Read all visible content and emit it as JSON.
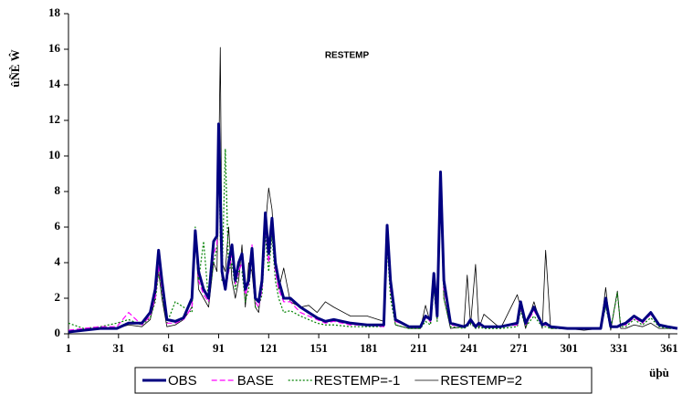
{
  "chart_data": {
    "type": "line",
    "title": "RESTEMP",
    "y_label": "ûÑÈ Ŵ",
    "x_label": "üþù",
    "x": [
      1,
      10,
      20,
      30,
      37,
      45,
      50,
      53,
      55,
      57,
      60,
      65,
      70,
      75,
      77,
      79,
      82,
      85,
      88,
      90,
      91,
      92,
      93,
      95,
      97,
      99,
      101,
      103,
      105,
      107,
      109,
      111,
      113,
      115,
      117,
      119,
      121,
      123,
      125,
      127,
      130,
      134,
      140,
      145,
      150,
      155,
      160,
      170,
      180,
      190,
      192,
      194,
      197,
      205,
      212,
      215,
      218,
      220,
      222,
      224,
      226,
      230,
      238,
      240,
      242,
      245,
      247,
      250,
      260,
      270,
      272,
      275,
      280,
      285,
      287,
      290,
      300,
      310,
      320,
      323,
      326,
      330,
      332,
      335,
      340,
      345,
      350,
      355,
      360,
      366
    ],
    "series": [
      {
        "name": "OBS",
        "color": "#000080",
        "width": 3,
        "dash": "none",
        "values": [
          0.1,
          0.2,
          0.3,
          0.3,
          0.6,
          0.6,
          1.2,
          2.5,
          4.7,
          3.0,
          0.8,
          0.7,
          0.9,
          2.0,
          5.8,
          3.5,
          2.5,
          2.0,
          5.2,
          5.5,
          11.8,
          8.0,
          3.5,
          2.5,
          4.0,
          5.0,
          3.0,
          4.0,
          4.5,
          2.5,
          3.0,
          4.8,
          2.0,
          1.8,
          3.0,
          6.8,
          4.5,
          6.5,
          4.0,
          3.0,
          2.0,
          2.0,
          1.5,
          1.2,
          0.9,
          0.7,
          0.8,
          0.6,
          0.5,
          0.5,
          6.1,
          3.0,
          0.8,
          0.4,
          0.4,
          1.0,
          0.8,
          3.4,
          1.0,
          9.1,
          3.0,
          0.6,
          0.4,
          0.5,
          0.8,
          0.4,
          0.6,
          0.4,
          0.4,
          0.6,
          1.8,
          0.6,
          1.5,
          0.5,
          0.6,
          0.4,
          0.3,
          0.3,
          0.3,
          2.0,
          0.4,
          0.4,
          0.5,
          0.6,
          1.0,
          0.7,
          1.2,
          0.5,
          0.4,
          0.3
        ]
      },
      {
        "name": "BASE",
        "color": "#ff00ff",
        "width": 1.2,
        "dash": "6 3",
        "values": [
          0.2,
          0.3,
          0.4,
          0.4,
          1.2,
          0.5,
          1.0,
          2.0,
          3.8,
          2.5,
          0.6,
          0.6,
          0.8,
          1.5,
          5.5,
          3.0,
          2.2,
          1.8,
          4.5,
          5.0,
          11.5,
          6.5,
          3.2,
          2.4,
          3.5,
          4.5,
          2.8,
          3.5,
          4.0,
          2.2,
          2.8,
          5.0,
          1.8,
          1.5,
          2.5,
          6.0,
          4.0,
          6.0,
          3.5,
          2.5,
          1.8,
          1.8,
          1.2,
          1.0,
          0.8,
          0.6,
          0.7,
          0.5,
          0.5,
          0.4,
          5.5,
          2.5,
          0.7,
          0.4,
          0.4,
          0.9,
          0.7,
          2.8,
          0.9,
          8.5,
          2.5,
          0.5,
          0.4,
          0.5,
          0.7,
          0.4,
          0.5,
          0.4,
          0.4,
          0.5,
          1.5,
          0.5,
          1.3,
          0.5,
          0.5,
          0.4,
          0.3,
          0.3,
          0.3,
          1.8,
          0.4,
          0.4,
          0.5,
          0.5,
          0.9,
          0.6,
          1.1,
          0.5,
          0.4,
          0.3
        ]
      },
      {
        "name": "RESTEMP=-1",
        "color": "#008000",
        "width": 1.2,
        "dash": "2 2",
        "values": [
          0.6,
          0.3,
          0.4,
          0.6,
          0.8,
          0.5,
          0.9,
          1.8,
          3.5,
          2.2,
          0.6,
          1.8,
          1.5,
          1.2,
          6.0,
          3.0,
          5.2,
          1.8,
          4.0,
          4.8,
          11.0,
          5.5,
          3.0,
          10.4,
          3.5,
          4.0,
          2.5,
          3.5,
          3.5,
          1.8,
          2.5,
          4.5,
          1.5,
          1.5,
          2.2,
          5.5,
          3.5,
          5.5,
          3.0,
          2.0,
          1.2,
          1.3,
          1.0,
          0.8,
          0.6,
          0.5,
          0.5,
          0.4,
          0.4,
          0.4,
          5.0,
          2.0,
          0.5,
          0.3,
          0.3,
          0.7,
          0.5,
          2.5,
          0.7,
          8.0,
          2.0,
          0.4,
          0.3,
          0.4,
          0.6,
          0.3,
          0.4,
          0.3,
          0.3,
          0.4,
          1.3,
          0.4,
          1.0,
          0.4,
          0.4,
          0.3,
          0.3,
          0.3,
          0.3,
          1.5,
          0.3,
          2.3,
          0.4,
          0.4,
          0.8,
          0.5,
          0.9,
          0.4,
          0.3,
          0.3
        ]
      },
      {
        "name": "RESTEMP=2",
        "color": "#000000",
        "width": 0.8,
        "dash": "none",
        "values": [
          0.1,
          0.2,
          0.3,
          0.3,
          0.5,
          0.4,
          0.8,
          2.0,
          3.5,
          2.0,
          0.4,
          0.5,
          0.8,
          1.5,
          5.5,
          2.5,
          2.0,
          1.5,
          4.0,
          3.5,
          9.0,
          16.1,
          4.0,
          3.5,
          6.0,
          3.0,
          2.0,
          3.0,
          5.0,
          1.5,
          4.0,
          3.5,
          1.5,
          1.2,
          3.0,
          6.0,
          8.2,
          7.0,
          4.0,
          2.5,
          3.7,
          1.8,
          1.5,
          1.6,
          1.2,
          1.8,
          1.5,
          1.0,
          1.0,
          0.7,
          6.0,
          2.5,
          0.5,
          0.3,
          0.3,
          1.6,
          0.6,
          3.0,
          0.8,
          9.0,
          2.0,
          0.3,
          0.4,
          3.3,
          0.5,
          3.9,
          0.3,
          1.1,
          0.3,
          2.2,
          1.5,
          0.3,
          1.8,
          0.3,
          4.7,
          0.3,
          0.3,
          0.2,
          0.3,
          2.6,
          0.2,
          2.4,
          0.3,
          0.3,
          0.5,
          0.4,
          0.6,
          0.3,
          0.3,
          0.3
        ]
      }
    ],
    "xlim": [
      1,
      366
    ],
    "xticks": [
      1,
      31,
      61,
      91,
      121,
      151,
      181,
      211,
      241,
      271,
      301,
      331,
      361
    ],
    "ylim": [
      0,
      18
    ],
    "yticks": [
      0,
      2,
      4,
      6,
      8,
      10,
      12,
      14,
      16,
      18
    ],
    "grid": false,
    "legend": "bottom"
  }
}
